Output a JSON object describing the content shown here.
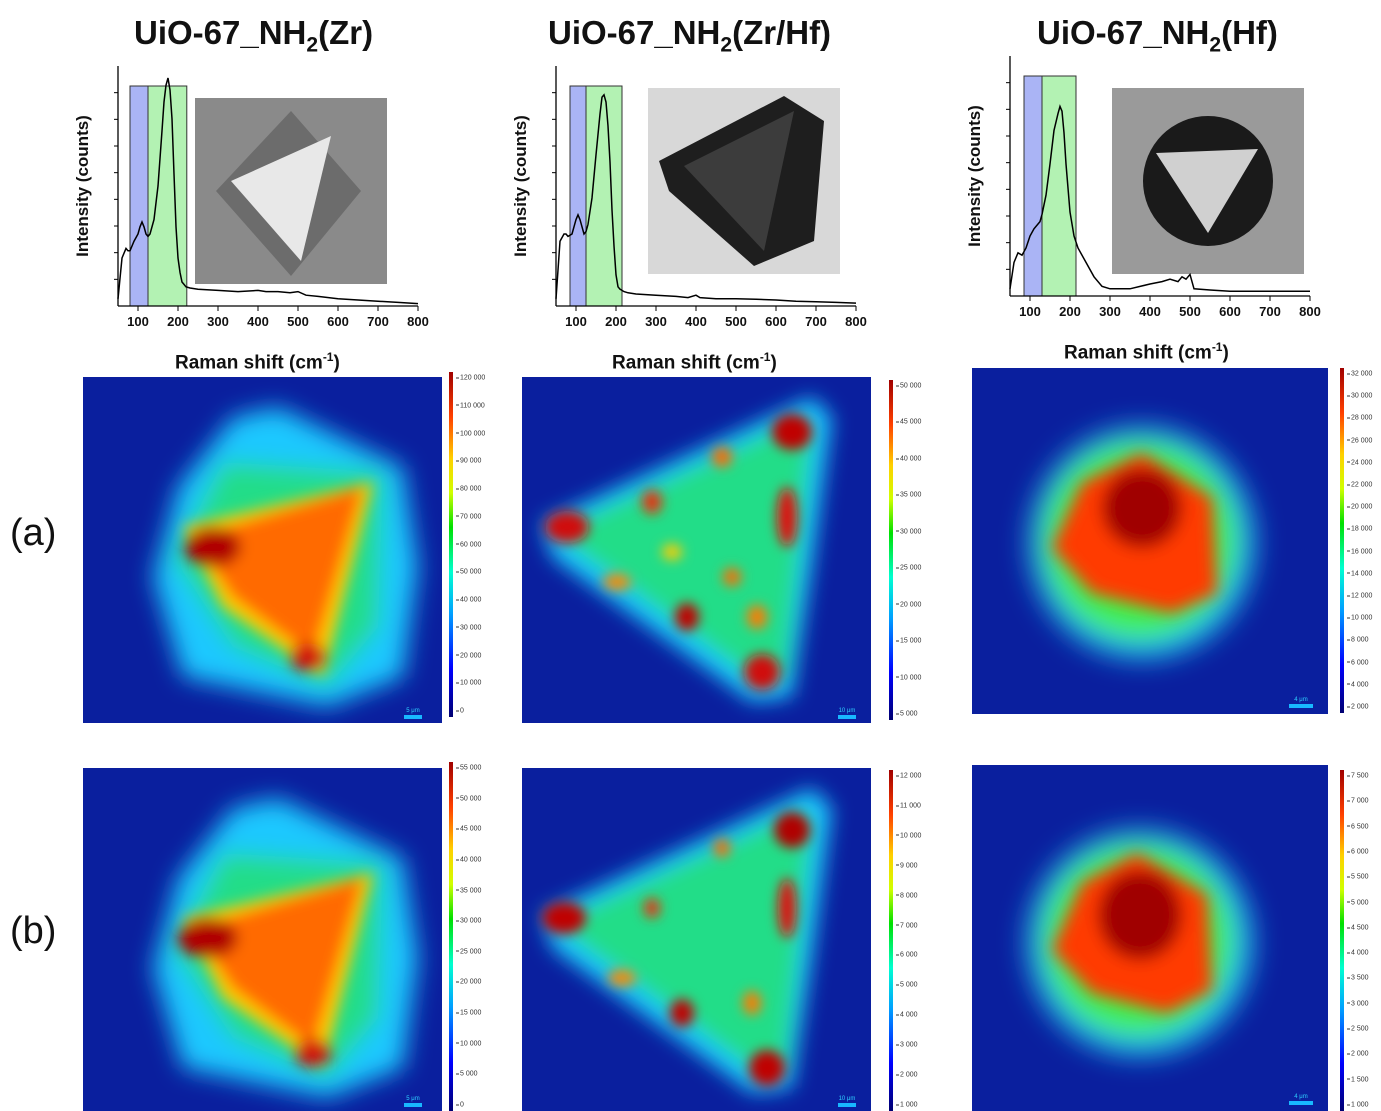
{
  "chart_data": [
    {
      "type": "line",
      "title": "UiO-67_NH2(Zr)",
      "xlabel": "Raman shift (cm-1)",
      "ylabel": "Intensity (counts)",
      "xlim": [
        50,
        800
      ],
      "xticks": [
        "100",
        "200",
        "300",
        "400",
        "500",
        "600",
        "700",
        "800"
      ],
      "highlight_bands": [
        {
          "range": [
            80,
            125
          ],
          "color": "#aab4f5"
        },
        {
          "range": [
            125,
            222
          ],
          "color": "#b3f2b3"
        }
      ],
      "x": [
        50,
        60,
        70,
        75,
        80,
        90,
        100,
        105,
        110,
        115,
        120,
        125,
        130,
        140,
        150,
        160,
        165,
        170,
        175,
        180,
        185,
        190,
        195,
        200,
        205,
        210,
        215,
        220,
        230,
        250,
        300,
        350,
        400,
        420,
        450,
        480,
        500,
        520,
        550,
        600,
        650,
        700,
        750,
        800
      ],
      "y": [
        0.03,
        0.2,
        0.24,
        0.23,
        0.23,
        0.27,
        0.3,
        0.33,
        0.35,
        0.33,
        0.3,
        0.29,
        0.3,
        0.36,
        0.5,
        0.73,
        0.85,
        0.92,
        0.95,
        0.9,
        0.78,
        0.55,
        0.33,
        0.2,
        0.14,
        0.1,
        0.09,
        0.08,
        0.075,
        0.07,
        0.065,
        0.06,
        0.065,
        0.06,
        0.06,
        0.055,
        0.06,
        0.045,
        0.04,
        0.03,
        0.025,
        0.02,
        0.015,
        0.01
      ]
    },
    {
      "type": "line",
      "title": "UiO-67_NH2(Zr/Hf)",
      "xlabel": "Raman shift (cm-1)",
      "ylabel": "Intensity (counts)",
      "xlim": [
        50,
        800
      ],
      "xticks": [
        "100",
        "200",
        "300",
        "400",
        "500",
        "600",
        "700",
        "800"
      ],
      "highlight_bands": [
        {
          "range": [
            85,
            125
          ],
          "color": "#aab4f5"
        },
        {
          "range": [
            125,
            215
          ],
          "color": "#b3f2b3"
        }
      ],
      "x": [
        50,
        60,
        70,
        75,
        80,
        90,
        100,
        105,
        110,
        115,
        120,
        125,
        130,
        140,
        150,
        160,
        165,
        170,
        175,
        180,
        185,
        190,
        195,
        200,
        205,
        210,
        215,
        220,
        230,
        250,
        300,
        350,
        380,
        400,
        410,
        450,
        500,
        550,
        600,
        650,
        700,
        750,
        800
      ],
      "y": [
        0.03,
        0.27,
        0.3,
        0.3,
        0.29,
        0.3,
        0.36,
        0.38,
        0.36,
        0.33,
        0.3,
        0.31,
        0.34,
        0.45,
        0.63,
        0.8,
        0.87,
        0.88,
        0.85,
        0.75,
        0.6,
        0.4,
        0.25,
        0.13,
        0.08,
        0.07,
        0.065,
        0.06,
        0.055,
        0.05,
        0.045,
        0.04,
        0.035,
        0.045,
        0.035,
        0.03,
        0.03,
        0.028,
        0.025,
        0.02,
        0.018,
        0.015,
        0.012
      ]
    },
    {
      "type": "line",
      "title": "UiO-67_NH2(Hf)",
      "xlabel": "Raman shift (cm-1)",
      "ylabel": "Intensity (counts)",
      "xlim": [
        50,
        800
      ],
      "xticks": [
        "100",
        "200",
        "300",
        "400",
        "500",
        "600",
        "700",
        "800"
      ],
      "highlight_bands": [
        {
          "range": [
            85,
            130
          ],
          "color": "#aab4f5"
        },
        {
          "range": [
            130,
            215
          ],
          "color": "#b3f2b3"
        }
      ],
      "x": [
        50,
        60,
        70,
        80,
        90,
        100,
        110,
        120,
        125,
        130,
        140,
        150,
        160,
        170,
        175,
        180,
        185,
        190,
        200,
        210,
        220,
        240,
        260,
        280,
        300,
        350,
        400,
        430,
        450,
        470,
        480,
        490,
        500,
        510,
        550,
        600,
        700,
        800
      ],
      "y": [
        0.03,
        0.14,
        0.18,
        0.17,
        0.2,
        0.25,
        0.28,
        0.3,
        0.31,
        0.34,
        0.42,
        0.55,
        0.69,
        0.76,
        0.79,
        0.77,
        0.68,
        0.55,
        0.35,
        0.25,
        0.2,
        0.14,
        0.08,
        0.04,
        0.03,
        0.03,
        0.05,
        0.06,
        0.07,
        0.06,
        0.08,
        0.07,
        0.09,
        0.03,
        0.025,
        0.02,
        0.02,
        0.02
      ]
    },
    {
      "type": "heatmap",
      "row": "(a)",
      "column": "UiO-67_NH2(Zr)",
      "colorbar_ticks": [
        "120 000",
        "110 000",
        "100 000",
        "90 000",
        "80 000",
        "70 000",
        "60 000",
        "50 000",
        "40 000",
        "30 000",
        "20 000",
        "10 000",
        "0"
      ],
      "scale_bar": "5 μm"
    },
    {
      "type": "heatmap",
      "row": "(a)",
      "column": "UiO-67_NH2(Zr/Hf)",
      "colorbar_ticks": [
        "50 000",
        "45 000",
        "40 000",
        "35 000",
        "30 000",
        "25 000",
        "20 000",
        "15 000",
        "10 000",
        "5 000"
      ],
      "scale_bar": "10 μm"
    },
    {
      "type": "heatmap",
      "row": "(a)",
      "column": "UiO-67_NH2(Hf)",
      "colorbar_ticks": [
        "32 000",
        "30 000",
        "28 000",
        "26 000",
        "24 000",
        "22 000",
        "20 000",
        "18 000",
        "16 000",
        "14 000",
        "12 000",
        "10 000",
        "8 000",
        "6 000",
        "4 000",
        "2 000"
      ],
      "scale_bar": "4 μm"
    },
    {
      "type": "heatmap",
      "row": "(b)",
      "column": "UiO-67_NH2(Zr)",
      "colorbar_ticks": [
        "55 000",
        "50 000",
        "45 000",
        "40 000",
        "35 000",
        "30 000",
        "25 000",
        "20 000",
        "15 000",
        "10 000",
        "5 000",
        "0"
      ],
      "scale_bar": "5 μm"
    },
    {
      "type": "heatmap",
      "row": "(b)",
      "column": "UiO-67_NH2(Zr/Hf)",
      "colorbar_ticks": [
        "12 000",
        "11 000",
        "10 000",
        "9 000",
        "8 000",
        "7 000",
        "6 000",
        "5 000",
        "4 000",
        "3 000",
        "2 000",
        "1 000"
      ],
      "scale_bar": "10 μm"
    },
    {
      "type": "heatmap",
      "row": "(b)",
      "column": "UiO-67_NH2(Hf)",
      "colorbar_ticks": [
        "7 500",
        "7 000",
        "6 500",
        "6 000",
        "5 500",
        "5 000",
        "4 500",
        "4 000",
        "3 500",
        "3 000",
        "2 500",
        "2 000",
        "1 500",
        "1 000"
      ],
      "scale_bar": "4 μm"
    }
  ],
  "titles": [
    {
      "main": "UiO-67_NH",
      "sub": "2",
      "rest": "(Zr)"
    },
    {
      "main": "UiO-67_NH",
      "sub": "2",
      "rest": "(Zr/Hf)"
    },
    {
      "main": "UiO-67_NH",
      "sub": "2",
      "rest": "(Hf)"
    }
  ],
  "axis": {
    "xlabel_main": "Raman shift (cm",
    "xlabel_sup": "-1",
    "xlabel_end": ")",
    "ylabel": "Intensity (counts)"
  },
  "row_labels": {
    "a": "(a)",
    "b": "(b)"
  },
  "colors": {
    "band_blue": "#aab4f5",
    "band_green": "#b3f2b3",
    "map_background": "#0a1f9e"
  }
}
